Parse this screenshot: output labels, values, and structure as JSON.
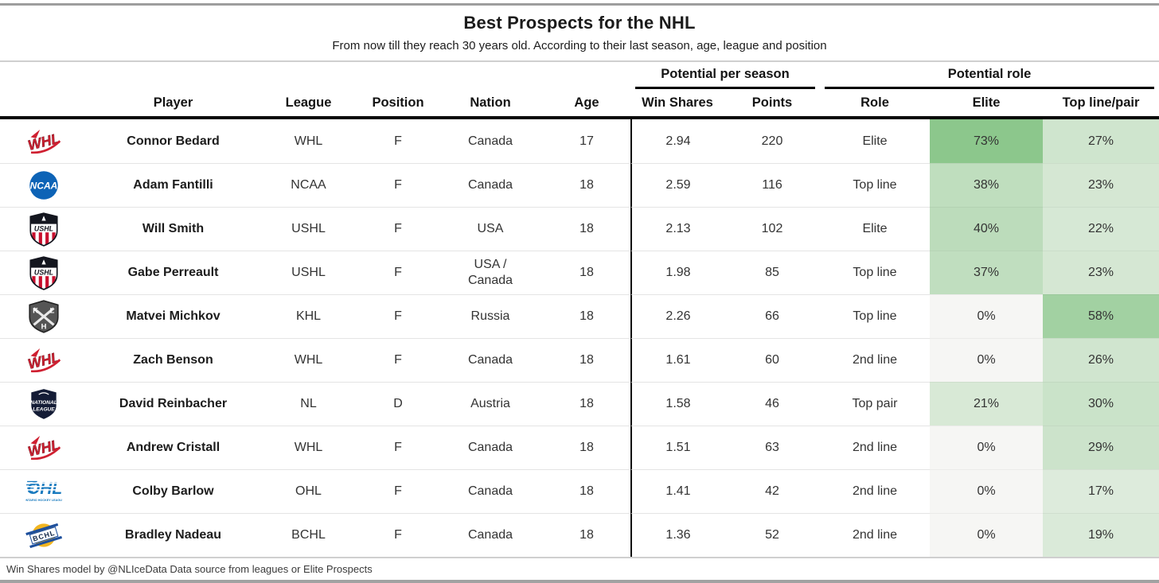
{
  "page": {
    "footer_note": "Win Shares model by @NLIceData Data source from leagues or Elite Prospects"
  },
  "chart_data": {
    "type": "table",
    "title": "Best Prospects for the NHL",
    "subtitle": "From now till they reach 30 years old. According to their last season, age, league and position",
    "group_headers": [
      {
        "label": "Potential per season",
        "columns_spanned": [
          "Win Shares",
          "Points"
        ]
      },
      {
        "label": "Potential role",
        "columns_spanned": [
          "Role",
          "Elite",
          "Top line/pair"
        ]
      }
    ],
    "columns": [
      "Player",
      "League",
      "Position",
      "Nation",
      "Age",
      "Win Shares",
      "Points",
      "Role",
      "Elite",
      "Top line/pair"
    ],
    "heat_colors": {
      "zero": "#f6f6f4",
      "max_sample_73pct": "#8cc78c"
    },
    "rows": [
      {
        "logo": "whl-logo",
        "player": "Connor Bedard",
        "league": "WHL",
        "position": "F",
        "nation": "Canada",
        "age": "17",
        "win_shares": "2.94",
        "points": "220",
        "role": "Elite",
        "elite": "73%",
        "top": "27%",
        "elite_color": "#8cc78c",
        "top_color": "#cfe5ce"
      },
      {
        "logo": "ncaa-logo",
        "player": "Adam Fantilli",
        "league": "NCAA",
        "position": "F",
        "nation": "Canada",
        "age": "18",
        "win_shares": "2.59",
        "points": "116",
        "role": "Top line",
        "elite": "38%",
        "top": "23%",
        "elite_color": "#bfdebe",
        "top_color": "#d5e7d3"
      },
      {
        "logo": "ushl-logo",
        "player": "Will Smith",
        "league": "USHL",
        "position": "F",
        "nation": "USA",
        "age": "18",
        "win_shares": "2.13",
        "points": "102",
        "role": "Elite",
        "elite": "40%",
        "top": "22%",
        "elite_color": "#bcdcbb",
        "top_color": "#d6e8d5"
      },
      {
        "logo": "ushl-logo",
        "player": "Gabe Perreault",
        "league": "USHL",
        "position": "F",
        "nation": "USA /\nCanada",
        "age": "18",
        "win_shares": "1.98",
        "points": "85",
        "role": "Top line",
        "elite": "37%",
        "top": "23%",
        "elite_color": "#c0debf",
        "top_color": "#d5e7d3"
      },
      {
        "logo": "khl-logo",
        "player": "Matvei Michkov",
        "league": "KHL",
        "position": "F",
        "nation": "Russia",
        "age": "18",
        "win_shares": "2.26",
        "points": "66",
        "role": "Top line",
        "elite": "0%",
        "top": "58%",
        "elite_color": "#f6f6f4",
        "top_color": "#a2d1a2"
      },
      {
        "logo": "whl-logo",
        "player": "Zach Benson",
        "league": "WHL",
        "position": "F",
        "nation": "Canada",
        "age": "18",
        "win_shares": "1.61",
        "points": "60",
        "role": "2nd line",
        "elite": "0%",
        "top": "26%",
        "elite_color": "#f6f6f4",
        "top_color": "#d0e5cf"
      },
      {
        "logo": "nl-logo",
        "player": "David Reinbacher",
        "league": "NL",
        "position": "D",
        "nation": "Austria",
        "age": "18",
        "win_shares": "1.58",
        "points": "46",
        "role": "Top pair",
        "elite": "21%",
        "top": "30%",
        "elite_color": "#d8e9d6",
        "top_color": "#cae3c9"
      },
      {
        "logo": "whl-logo",
        "player": "Andrew Cristall",
        "league": "WHL",
        "position": "F",
        "nation": "Canada",
        "age": "18",
        "win_shares": "1.51",
        "points": "63",
        "role": "2nd line",
        "elite": "0%",
        "top": "29%",
        "elite_color": "#f6f6f4",
        "top_color": "#cce3cb"
      },
      {
        "logo": "ohl-logo",
        "player": "Colby Barlow",
        "league": "OHL",
        "position": "F",
        "nation": "Canada",
        "age": "18",
        "win_shares": "1.41",
        "points": "42",
        "role": "2nd line",
        "elite": "0%",
        "top": "17%",
        "elite_color": "#f6f6f4",
        "top_color": "#ddebdc"
      },
      {
        "logo": "bchl-logo",
        "player": "Bradley Nadeau",
        "league": "BCHL",
        "position": "F",
        "nation": "Canada",
        "age": "18",
        "win_shares": "1.36",
        "points": "52",
        "role": "2nd line",
        "elite": "0%",
        "top": "19%",
        "elite_color": "#f6f6f4",
        "top_color": "#daead9"
      }
    ]
  }
}
